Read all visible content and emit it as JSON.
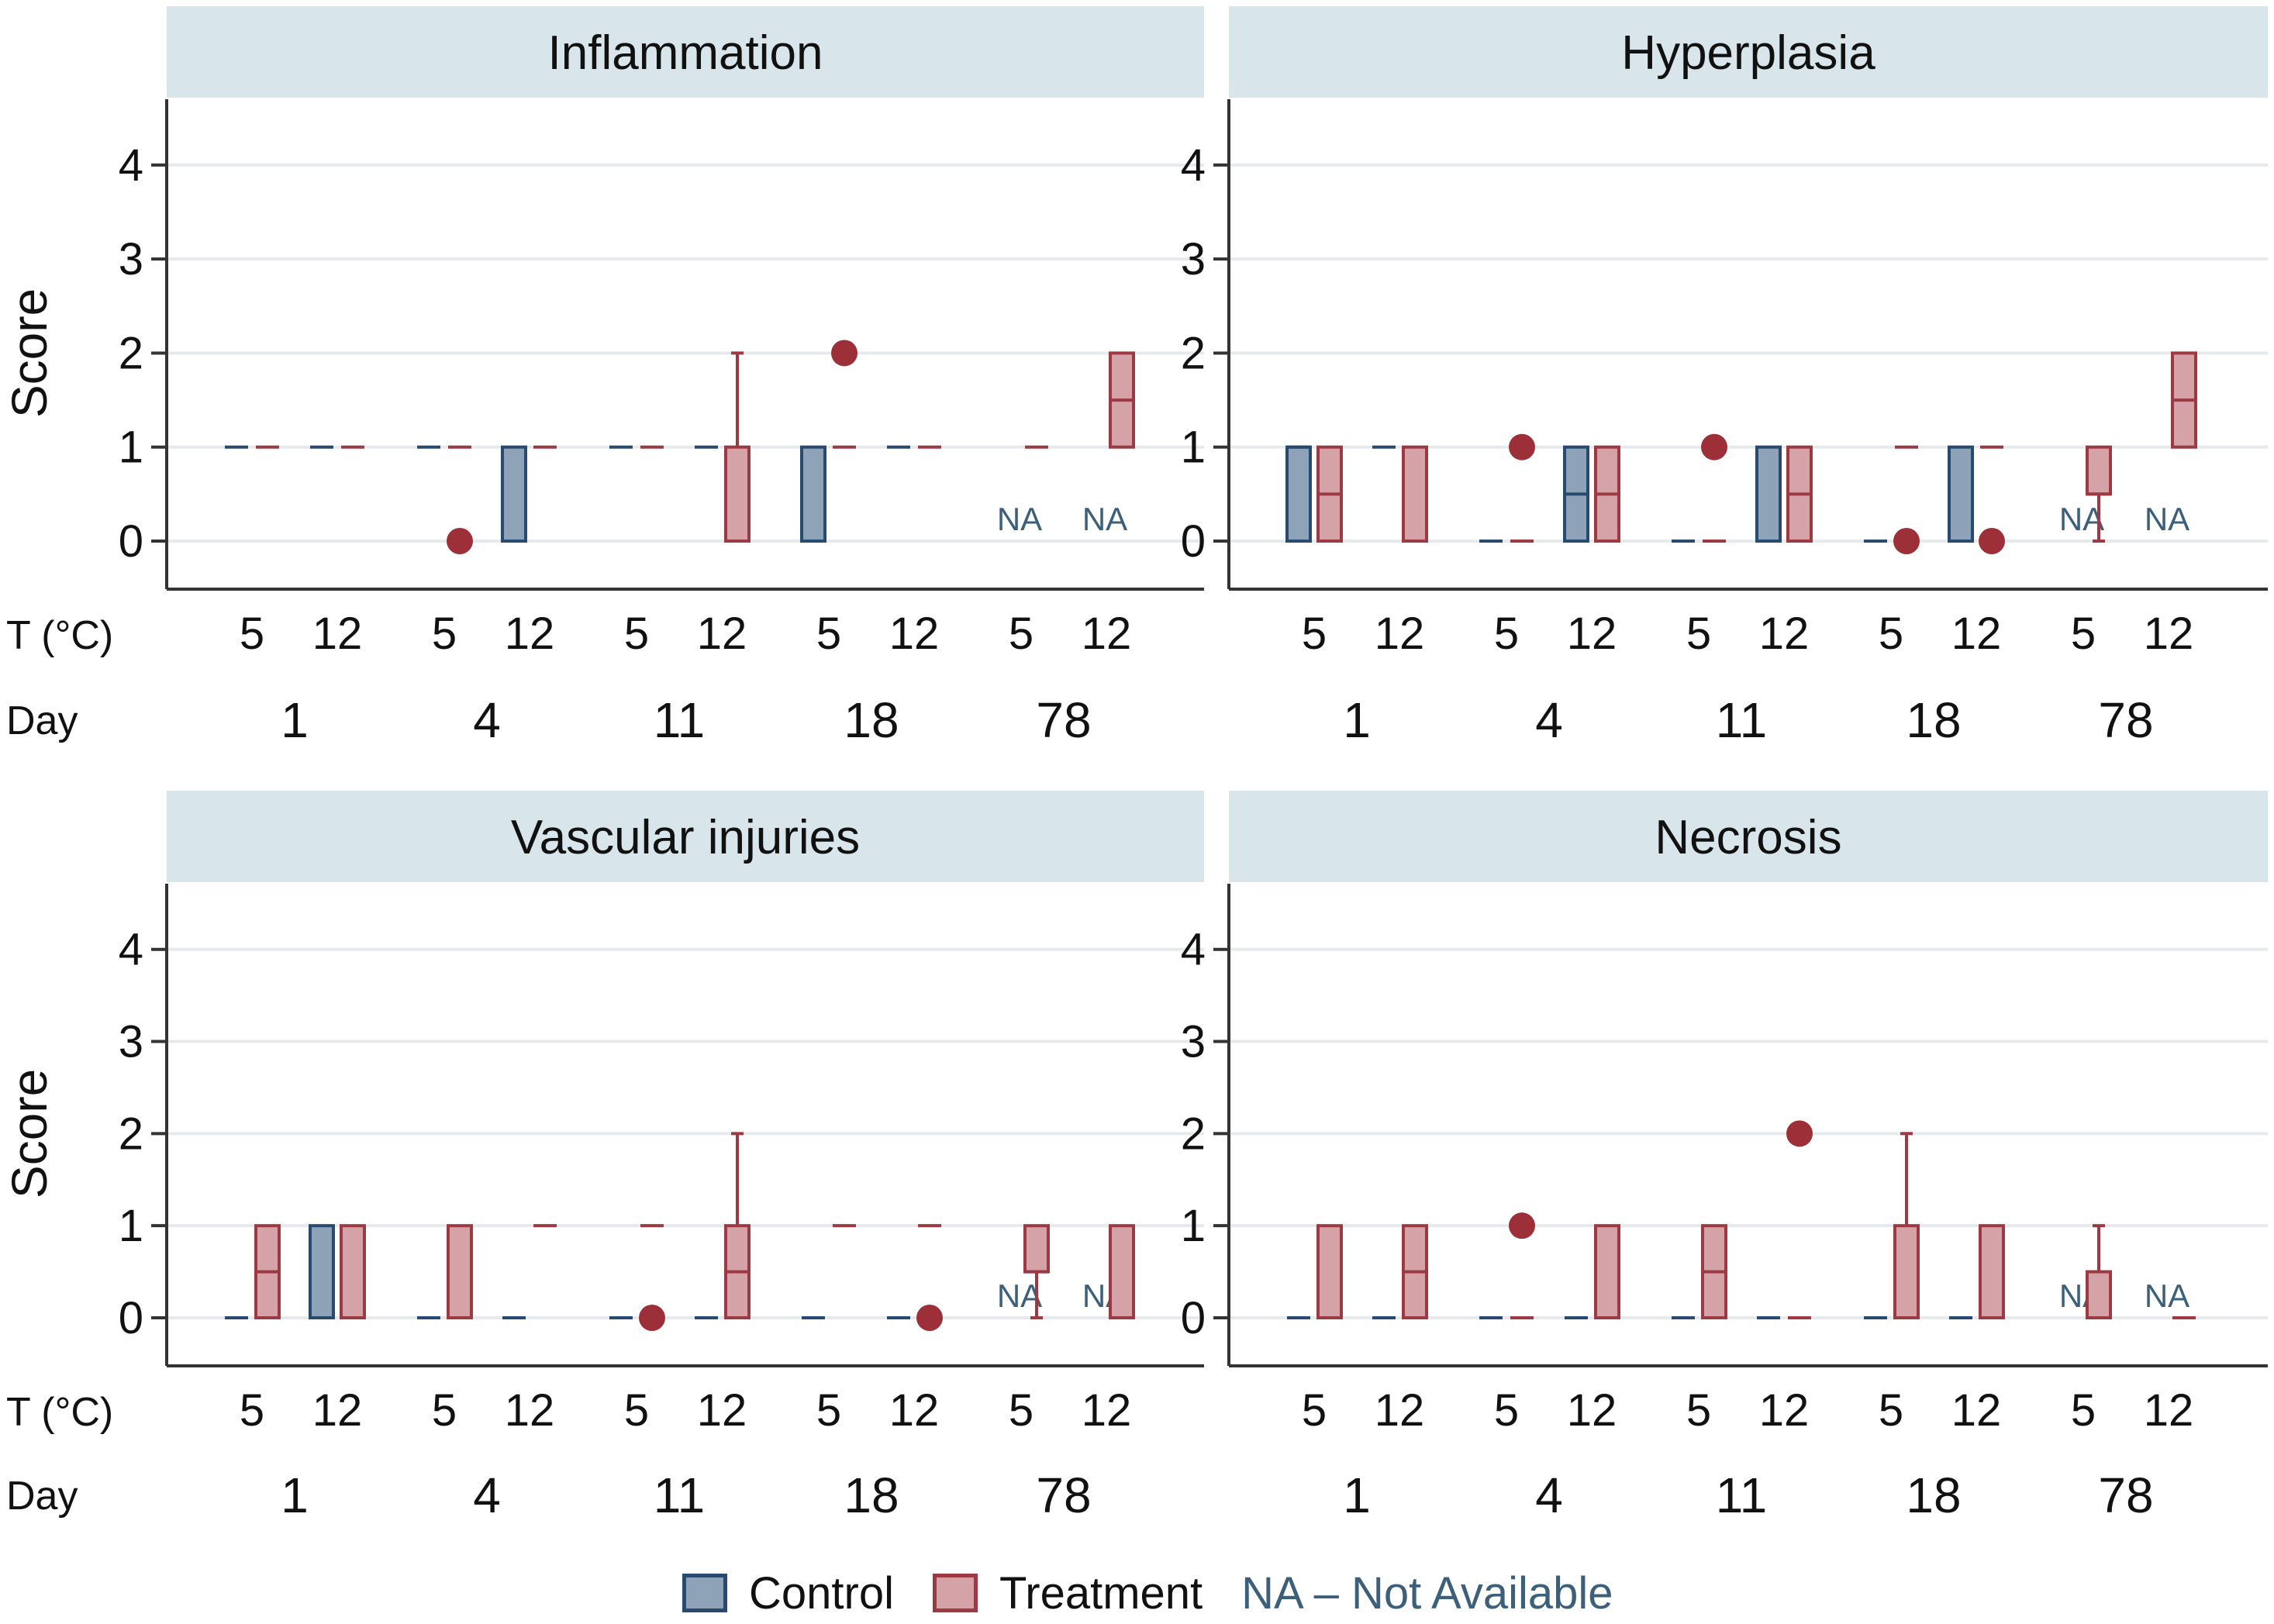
{
  "colors": {
    "control_fill": "#8ea2b8",
    "control_stroke": "#274a6e",
    "treatment_fill": "#d4a2a7",
    "treatment_stroke": "#9c3a44",
    "outlier": "#9c2f38",
    "na_text": "#3c5f7a",
    "header_bg": "#d8e5ea",
    "grid": "#e6eaec"
  },
  "legend": {
    "control": "Control",
    "treatment": "Treatment",
    "na_note": "NA – Not Available"
  },
  "axis_labels": {
    "y": "Score",
    "temperature_row": "T (°C)",
    "day_row": "Day"
  },
  "chart_data": [
    {
      "type": "boxplot",
      "title": "Inflammation",
      "ylabel": "Score",
      "ylim": [
        -0.5,
        4.5
      ],
      "yticks": [
        0,
        1,
        2,
        3,
        4
      ],
      "days": [
        "1",
        "4",
        "11",
        "18",
        "78"
      ],
      "temperatures": [
        "5",
        "12"
      ],
      "na_label": "NA",
      "groups": [
        {
          "day": "1",
          "temp": "5",
          "control": {
            "median": 1
          },
          "treatment": {
            "median": 1
          }
        },
        {
          "day": "1",
          "temp": "12",
          "control": {
            "median": 1
          },
          "treatment": {
            "median": 1
          }
        },
        {
          "day": "4",
          "temp": "5",
          "control": {
            "median": 1
          },
          "treatment": {
            "median": 1,
            "outliers": [
              0
            ]
          }
        },
        {
          "day": "4",
          "temp": "12",
          "control": {
            "q1": 0,
            "median": 0,
            "q3": 1
          },
          "treatment": {
            "median": 1
          }
        },
        {
          "day": "11",
          "temp": "5",
          "control": {
            "median": 1
          },
          "treatment": {
            "median": 1
          }
        },
        {
          "day": "11",
          "temp": "12",
          "control": {
            "median": 1
          },
          "treatment": {
            "q1": 0,
            "median": 0,
            "q3": 1,
            "whisker_high": 2
          }
        },
        {
          "day": "18",
          "temp": "5",
          "control": {
            "q1": 0,
            "median": 0,
            "q3": 1
          },
          "treatment": {
            "median": 1,
            "outliers": [
              2
            ]
          }
        },
        {
          "day": "18",
          "temp": "12",
          "control": {
            "median": 1
          },
          "treatment": {
            "median": 1
          }
        },
        {
          "day": "78",
          "temp": "5",
          "control": "NA",
          "treatment": {
            "median": 1
          }
        },
        {
          "day": "78",
          "temp": "12",
          "control": "NA",
          "treatment": {
            "q1": 1,
            "median": 1.5,
            "q3": 2
          }
        }
      ]
    },
    {
      "type": "boxplot",
      "title": "Hyperplasia",
      "ylabel": "",
      "ylim": [
        -0.5,
        4.5
      ],
      "yticks": [
        0,
        1,
        2,
        3,
        4
      ],
      "days": [
        "1",
        "4",
        "11",
        "18",
        "78"
      ],
      "temperatures": [
        "5",
        "12"
      ],
      "na_label": "NA",
      "groups": [
        {
          "day": "1",
          "temp": "5",
          "control": {
            "q1": 0,
            "median": 1,
            "q3": 1
          },
          "treatment": {
            "q1": 0,
            "median": 0.5,
            "q3": 1
          }
        },
        {
          "day": "1",
          "temp": "12",
          "control": {
            "median": 1
          },
          "treatment": {
            "q1": 0,
            "median": 0,
            "q3": 1
          }
        },
        {
          "day": "4",
          "temp": "5",
          "control": {
            "median": 0
          },
          "treatment": {
            "median": 0,
            "outliers": [
              1
            ]
          }
        },
        {
          "day": "4",
          "temp": "12",
          "control": {
            "q1": 0,
            "median": 0.5,
            "q3": 1
          },
          "treatment": {
            "q1": 0,
            "median": 0.5,
            "q3": 1
          }
        },
        {
          "day": "11",
          "temp": "5",
          "control": {
            "median": 0
          },
          "treatment": {
            "median": 0,
            "outliers": [
              1
            ]
          }
        },
        {
          "day": "11",
          "temp": "12",
          "control": {
            "q1": 0,
            "median": 0,
            "q3": 1
          },
          "treatment": {
            "q1": 0,
            "median": 0.5,
            "q3": 1
          }
        },
        {
          "day": "18",
          "temp": "5",
          "control": {
            "median": 0
          },
          "treatment": {
            "median": 1,
            "outliers": [
              0
            ]
          }
        },
        {
          "day": "18",
          "temp": "12",
          "control": {
            "q1": 0,
            "median": 0,
            "q3": 1
          },
          "treatment": {
            "median": 1,
            "outliers": [
              0
            ]
          }
        },
        {
          "day": "78",
          "temp": "5",
          "control": "NA",
          "treatment": {
            "q1": 0.5,
            "median": 0.5,
            "q3": 1,
            "whisker_low": 0
          }
        },
        {
          "day": "78",
          "temp": "12",
          "control": "NA",
          "treatment": {
            "q1": 1,
            "median": 1.5,
            "q3": 2
          }
        }
      ]
    },
    {
      "type": "boxplot",
      "title": "Vascular injuries",
      "ylabel": "Score",
      "ylim": [
        -0.5,
        4.5
      ],
      "yticks": [
        0,
        1,
        2,
        3,
        4
      ],
      "days": [
        "1",
        "4",
        "11",
        "18",
        "78"
      ],
      "temperatures": [
        "5",
        "12"
      ],
      "na_label": "NA",
      "groups": [
        {
          "day": "1",
          "temp": "5",
          "control": {
            "median": 0
          },
          "treatment": {
            "q1": 0,
            "median": 0.5,
            "q3": 1
          }
        },
        {
          "day": "1",
          "temp": "12",
          "control": {
            "q1": 0,
            "median": 0,
            "q3": 1
          },
          "treatment": {
            "q1": 0,
            "median": 0,
            "q3": 1
          }
        },
        {
          "day": "4",
          "temp": "5",
          "control": {
            "median": 0
          },
          "treatment": {
            "q1": 0,
            "median": 0,
            "q3": 1
          }
        },
        {
          "day": "4",
          "temp": "12",
          "control": {
            "median": 0
          },
          "treatment": {
            "median": 1
          }
        },
        {
          "day": "11",
          "temp": "5",
          "control": {
            "median": 0
          },
          "treatment": {
            "median": 1,
            "outliers": [
              0
            ]
          }
        },
        {
          "day": "11",
          "temp": "12",
          "control": {
            "median": 0
          },
          "treatment": {
            "q1": 0,
            "median": 0.5,
            "q3": 1,
            "whisker_high": 2
          }
        },
        {
          "day": "18",
          "temp": "5",
          "control": {
            "median": 0
          },
          "treatment": {
            "median": 1
          }
        },
        {
          "day": "18",
          "temp": "12",
          "control": {
            "median": 0
          },
          "treatment": {
            "median": 1,
            "outliers": [
              0
            ]
          }
        },
        {
          "day": "78",
          "temp": "5",
          "control": "NA",
          "treatment": {
            "q1": 0.5,
            "median": 0.5,
            "q3": 1,
            "whisker_low": 0
          }
        },
        {
          "day": "78",
          "temp": "12",
          "control": "NA",
          "treatment": {
            "q1": 0,
            "median": 0,
            "q3": 1
          }
        }
      ]
    },
    {
      "type": "boxplot",
      "title": "Necrosis",
      "ylabel": "",
      "ylim": [
        -0.5,
        4.5
      ],
      "yticks": [
        0,
        1,
        2,
        3,
        4
      ],
      "days": [
        "1",
        "4",
        "11",
        "18",
        "78"
      ],
      "temperatures": [
        "5",
        "12"
      ],
      "na_label": "NA",
      "groups": [
        {
          "day": "1",
          "temp": "5",
          "control": {
            "median": 0
          },
          "treatment": {
            "q1": 0,
            "median": 0,
            "q3": 1
          }
        },
        {
          "day": "1",
          "temp": "12",
          "control": {
            "median": 0
          },
          "treatment": {
            "q1": 0,
            "median": 0.5,
            "q3": 1
          }
        },
        {
          "day": "4",
          "temp": "5",
          "control": {
            "median": 0
          },
          "treatment": {
            "median": 0,
            "outliers": [
              1
            ]
          }
        },
        {
          "day": "4",
          "temp": "12",
          "control": {
            "median": 0
          },
          "treatment": {
            "q1": 0,
            "median": 0,
            "q3": 1
          }
        },
        {
          "day": "11",
          "temp": "5",
          "control": {
            "median": 0
          },
          "treatment": {
            "q1": 0,
            "median": 0.5,
            "q3": 1
          }
        },
        {
          "day": "11",
          "temp": "12",
          "control": {
            "median": 0
          },
          "treatment": {
            "median": 0,
            "outliers": [
              2
            ]
          }
        },
        {
          "day": "18",
          "temp": "5",
          "control": {
            "median": 0
          },
          "treatment": {
            "q1": 0,
            "median": 0,
            "q3": 1,
            "whisker_high": 2
          }
        },
        {
          "day": "18",
          "temp": "12",
          "control": {
            "median": 0
          },
          "treatment": {
            "q1": 0,
            "median": 0,
            "q3": 1
          }
        },
        {
          "day": "78",
          "temp": "5",
          "control": "NA",
          "treatment": {
            "q1": 0,
            "median": 0,
            "q3": 0.5,
            "whisker_high": 1
          }
        },
        {
          "day": "78",
          "temp": "12",
          "control": "NA",
          "treatment": {
            "median": 0
          }
        }
      ]
    }
  ]
}
